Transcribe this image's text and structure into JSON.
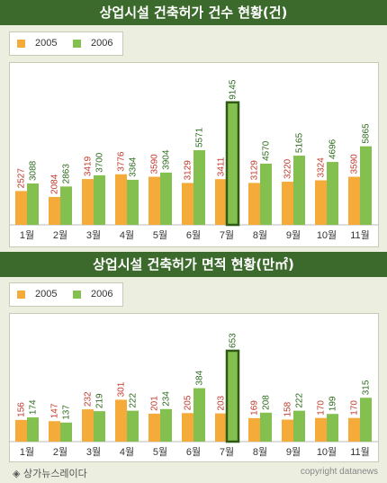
{
  "colors": {
    "c2005": "#f5ab3a",
    "c2006": "#84c04f",
    "c2005_label": "#c0392b",
    "c2006_label": "#2e6b1f",
    "highlight": "#2e5a14",
    "title_bg": "#3c6a2c"
  },
  "footer": {
    "source": "◈ 상가뉴스레이다",
    "copyright": "copyright datanews"
  },
  "chart_data": [
    {
      "type": "bar",
      "title": "상업시설 건축허가 건수 현황(건)",
      "categories": [
        "1월",
        "2월",
        "3월",
        "4월",
        "5월",
        "6월",
        "7월",
        "8월",
        "9월",
        "10월",
        "11월"
      ],
      "series": [
        {
          "name": "2005",
          "values": [
            2527,
            2084,
            3419,
            3776,
            3590,
            3129,
            3411,
            3129,
            3220,
            3324,
            3590
          ]
        },
        {
          "name": "2006",
          "values": [
            3088,
            2863,
            3700,
            3364,
            3904,
            5571,
            9145,
            4570,
            5165,
            4696,
            5865
          ]
        }
      ],
      "highlight_category": "7월",
      "ylim": [
        0,
        9600
      ],
      "legend": "top-left"
    },
    {
      "type": "bar",
      "title": "상업시설 건축허가 면적 현황(만㎡)",
      "categories": [
        "1월",
        "2월",
        "3월",
        "4월",
        "5월",
        "6월",
        "7월",
        "8월",
        "9월",
        "10월",
        "11월"
      ],
      "series": [
        {
          "name": "2005",
          "values": [
            156,
            147,
            232,
            301,
            201,
            205,
            203,
            169,
            158,
            170,
            170
          ]
        },
        {
          "name": "2006",
          "values": [
            174,
            137,
            219,
            222,
            234,
            384,
            653,
            208,
            222,
            199,
            315
          ]
        }
      ],
      "highlight_category": "7월",
      "ylim": [
        0,
        685
      ],
      "legend": "top-left"
    }
  ]
}
